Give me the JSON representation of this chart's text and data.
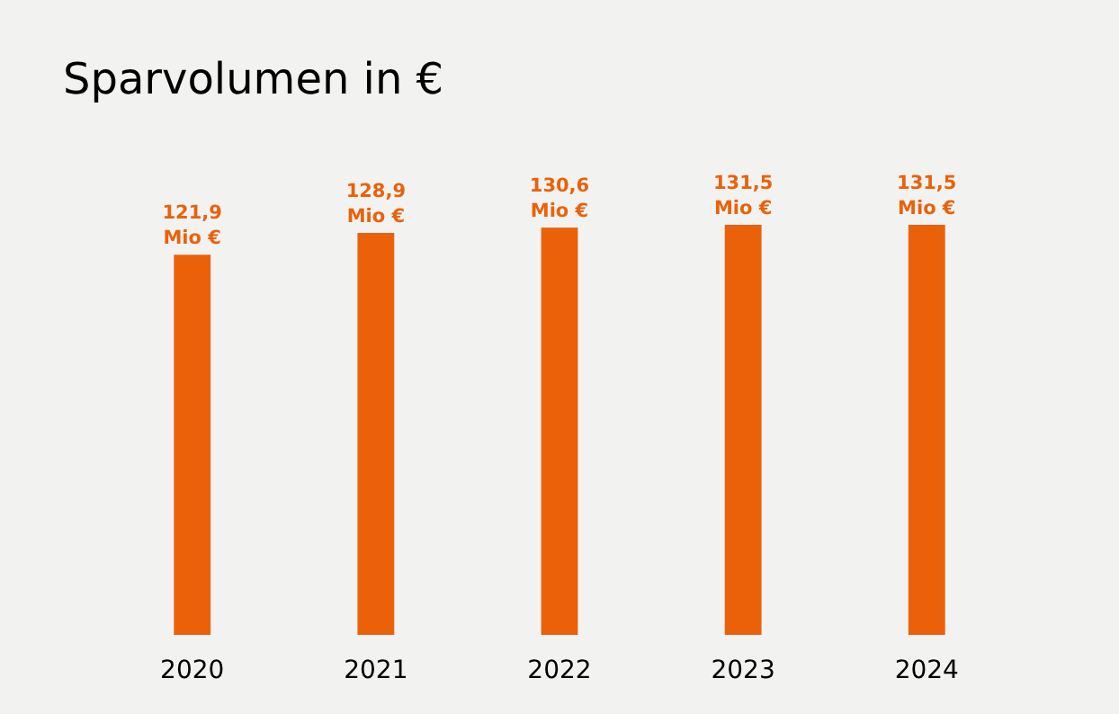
{
  "chart_data": {
    "type": "bar",
    "title": "Sparvolumen in €",
    "categories": [
      "2020",
      "2021",
      "2022",
      "2023",
      "2024"
    ],
    "values": [
      121.9,
      128.9,
      130.6,
      131.5,
      131.5
    ],
    "value_labels": [
      "121,9 Mio €",
      "128,9 Mio €",
      "130,6 Mio €",
      "131,5 Mio €",
      "131,5 Mio €"
    ],
    "color": "#eb6109"
  }
}
